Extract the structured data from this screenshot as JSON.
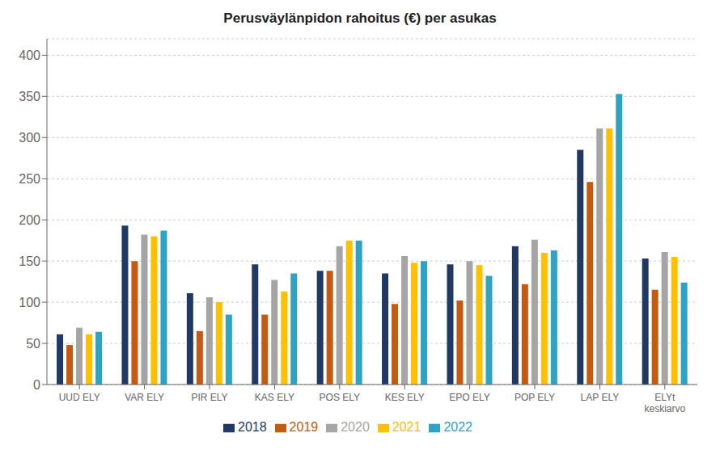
{
  "chart_data": {
    "type": "bar",
    "title": "Perusväylänpidon rahoitus (€) per asukas",
    "categories": [
      "UUD ELY",
      "VAR ELY",
      "PIR ELY",
      "KAS ELY",
      "POS ELY",
      "KES ELY",
      "EPO ELY",
      "POP ELY",
      "LAP ELY",
      "ELYt\nkeskiarvo"
    ],
    "series": [
      {
        "name": "2018",
        "color": "#1F3864",
        "values": [
          61,
          193,
          111,
          146,
          138,
          135,
          146,
          168,
          285,
          153
        ]
      },
      {
        "name": "2019",
        "color": "#C55A11",
        "values": [
          48,
          150,
          65,
          85,
          138,
          98,
          102,
          122,
          246,
          115
        ]
      },
      {
        "name": "2020",
        "color": "#A5A5A5",
        "values": [
          69,
          182,
          106,
          127,
          168,
          156,
          150,
          176,
          311,
          161
        ]
      },
      {
        "name": "2021",
        "color": "#FFC000",
        "values": [
          61,
          180,
          100,
          113,
          175,
          148,
          145,
          160,
          311,
          155
        ]
      },
      {
        "name": "2022",
        "color": "#2EA3C3",
        "values": [
          64,
          187,
          85,
          135,
          175,
          150,
          132,
          163,
          353,
          124
        ]
      }
    ],
    "ylim": [
      0,
      420
    ],
    "yticks": [
      0,
      50,
      100,
      150,
      200,
      250,
      300,
      350,
      400
    ],
    "grid": true,
    "legend": "bottom"
  }
}
